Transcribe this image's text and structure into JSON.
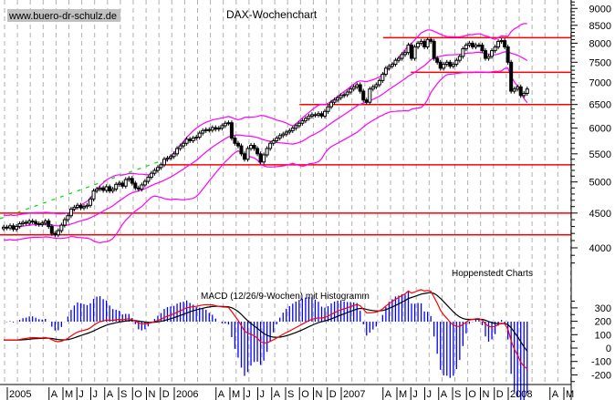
{
  "chart_data": [
    {
      "type": "candlestick",
      "title": "DAX-Wochenchart",
      "watermark": "www.buero-dr-schulz.de",
      "source": "Hoppenstedt Charts",
      "y_scale": "log",
      "ylim": [
        3700,
        9200
      ],
      "y_ticks": [
        4000,
        4500,
        5000,
        5500,
        6000,
        6500,
        7000,
        7500,
        8000,
        8500,
        9000
      ],
      "grid": "vertical dashed",
      "start_week": "2005-01",
      "weekly_close": [
        4290,
        4280,
        4310,
        4260,
        4300,
        4340,
        4360,
        4350,
        4380,
        4370,
        4340,
        4330,
        4350,
        4380,
        4300,
        4200,
        4180,
        4240,
        4320,
        4400,
        4460,
        4560,
        4590,
        4620,
        4580,
        4600,
        4620,
        4720,
        4850,
        4880,
        4900,
        4860,
        4920,
        4850,
        4880,
        4960,
        4980,
        4930,
        5040,
        5060,
        4980,
        4900,
        4880,
        4950,
        5010,
        5080,
        5150,
        5200,
        5250,
        5300,
        5400,
        5420,
        5450,
        5500,
        5600,
        5650,
        5700,
        5780,
        5750,
        5800,
        5820,
        5900,
        5950,
        5970,
        5960,
        6010,
        5980,
        6000,
        6050,
        6100,
        6110,
        5800,
        5700,
        5650,
        5500,
        5400,
        5600,
        5660,
        5600,
        5500,
        5350,
        5480,
        5600,
        5700,
        5750,
        5800,
        5850,
        5880,
        5920,
        5950,
        6000,
        6050,
        6100,
        6150,
        6200,
        6250,
        6280,
        6270,
        6300,
        6250,
        6350,
        6450,
        6550,
        6600,
        6650,
        6700,
        6720,
        6780,
        6850,
        6900,
        6950,
        6800,
        6600,
        6550,
        6850,
        6900,
        6950,
        7050,
        7200,
        7350,
        7400,
        7450,
        7550,
        7600,
        7700,
        7750,
        7950,
        7600,
        7900,
        8000,
        8050,
        7900,
        8100,
        8050,
        7600,
        7500,
        7350,
        7450,
        7500,
        7400,
        7450,
        7550,
        7650,
        7850,
        7950,
        8000,
        7900,
        7950,
        7950,
        7800,
        7600,
        7650,
        7800,
        7900,
        8050,
        8070,
        7900,
        7500,
        6800,
        6850,
        6900,
        6700,
        6750,
        6850
      ],
      "overlays": [
        "bollinger-upper",
        "moving-average",
        "bollinger-lower"
      ],
      "overlay_color": "#ff00ff",
      "support_resistance_lines": [
        {
          "level": 8150,
          "from": "2007-04"
        },
        {
          "level": 7250,
          "from": "2007-06"
        },
        {
          "level": 6500,
          "from": "2006-10"
        },
        {
          "level": 5300,
          "from": "2005-12"
        },
        {
          "level": 4500,
          "from": "2005-01"
        },
        {
          "level": 4180,
          "from": "2005-01"
        }
      ],
      "line_color": "#ff0000",
      "trendline": {
        "from": [
          "2005-01",
          4415
        ],
        "to": [
          "2006-01",
          5480
        ],
        "color": "#00dd00",
        "style": "dashed"
      }
    },
    {
      "type": "macd",
      "title": "MACD (12/26/9-Wochen) mit Histogramm",
      "params": [
        12,
        26,
        9
      ],
      "ylim": [
        -250,
        350
      ],
      "y_ticks": [
        300,
        200,
        100,
        0,
        -100,
        -200
      ],
      "macd_color": "#ff0000",
      "signal_color": "#000000",
      "histogram_color": "#0000ff"
    }
  ],
  "x_axis": {
    "labels": [
      {
        "text": "2005",
        "month": "2005-01"
      },
      {
        "text": "A",
        "month": "2005-04"
      },
      {
        "text": "M",
        "month": "2005-05"
      },
      {
        "text": "J",
        "month": "2005-06"
      },
      {
        "text": "J",
        "month": "2005-07"
      },
      {
        "text": "A",
        "month": "2005-08"
      },
      {
        "text": "S",
        "month": "2005-09"
      },
      {
        "text": "O",
        "month": "2005-10"
      },
      {
        "text": "N",
        "month": "2005-11"
      },
      {
        "text": "D",
        "month": "2005-12"
      },
      {
        "text": "2006",
        "month": "2006-01"
      },
      {
        "text": "A",
        "month": "2006-04"
      },
      {
        "text": "M",
        "month": "2006-05"
      },
      {
        "text": "J",
        "month": "2006-06"
      },
      {
        "text": "J",
        "month": "2006-07"
      },
      {
        "text": "A",
        "month": "2006-08"
      },
      {
        "text": "S",
        "month": "2006-09"
      },
      {
        "text": "O",
        "month": "2006-10"
      },
      {
        "text": "N",
        "month": "2006-11"
      },
      {
        "text": "D",
        "month": "2006-12"
      },
      {
        "text": "2007",
        "month": "2007-01"
      },
      {
        "text": "A",
        "month": "2007-04"
      },
      {
        "text": "M",
        "month": "2007-05"
      },
      {
        "text": "J",
        "month": "2007-06"
      },
      {
        "text": "J",
        "month": "2007-07"
      },
      {
        "text": "A",
        "month": "2007-08"
      },
      {
        "text": "S",
        "month": "2007-09"
      },
      {
        "text": "O",
        "month": "2007-10"
      },
      {
        "text": "N",
        "month": "2007-11"
      },
      {
        "text": "D",
        "month": "2007-12"
      },
      {
        "text": "2008",
        "month": "2008-01"
      },
      {
        "text": "A",
        "month": "2008-04"
      },
      {
        "text": "M",
        "month": "2008-05"
      }
    ]
  }
}
